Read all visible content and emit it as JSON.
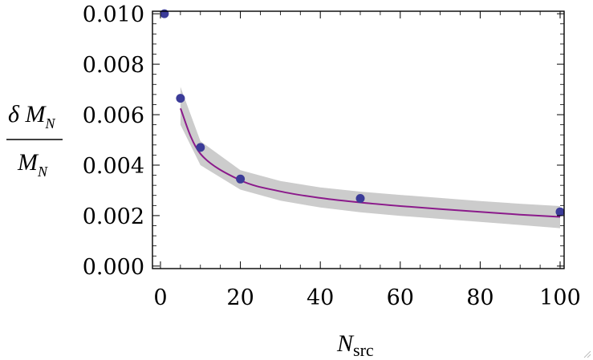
{
  "chart_data": {
    "type": "scatter",
    "title": "",
    "xlabel": {
      "main": "N",
      "sub": "src"
    },
    "ylabel": {
      "numerator": "δ M",
      "numerator_sub": "N",
      "denominator": "M",
      "denominator_sub": "N"
    },
    "xlim": [
      -2,
      101
    ],
    "ylim": [
      -0.0001,
      0.0101
    ],
    "x_ticks": [
      "0",
      "20",
      "40",
      "60",
      "80",
      "100"
    ],
    "x_tick_values": [
      0,
      20,
      40,
      60,
      80,
      100
    ],
    "y_ticks": [
      "0.000",
      "0.002",
      "0.004",
      "0.006",
      "0.008",
      "0.010"
    ],
    "y_tick_values": [
      0.0,
      0.002,
      0.004,
      0.006,
      0.008,
      0.01
    ],
    "grid": false,
    "legend": "none",
    "series": [
      {
        "kind": "points",
        "color": "#3b3b98",
        "x": [
          1,
          5,
          10,
          20,
          50,
          100
        ],
        "y": [
          0.01,
          0.00665,
          0.0047,
          0.00345,
          0.00268,
          0.00215
        ]
      },
      {
        "kind": "fit-line",
        "color": "#8b1a8b",
        "x": [
          5,
          10,
          20,
          30,
          40,
          50,
          60,
          70,
          80,
          90,
          100
        ],
        "y": [
          0.00625,
          0.00445,
          0.0034,
          0.00296,
          0.0027,
          0.00252,
          0.00238,
          0.00226,
          0.00215,
          0.00204,
          0.00195
        ]
      },
      {
        "kind": "error-band",
        "color": "#cccccc",
        "x": [
          5,
          10,
          20,
          30,
          40,
          50,
          60,
          70,
          80,
          90,
          100
        ],
        "upper": [
          0.0071,
          0.00495,
          0.0038,
          0.00337,
          0.00312,
          0.00295,
          0.00282,
          0.0027,
          0.00258,
          0.00247,
          0.00238
        ],
        "lower": [
          0.0056,
          0.004,
          0.00303,
          0.00259,
          0.00232,
          0.00213,
          0.00199,
          0.00187,
          0.00175,
          0.00163,
          0.0015
        ]
      }
    ]
  }
}
